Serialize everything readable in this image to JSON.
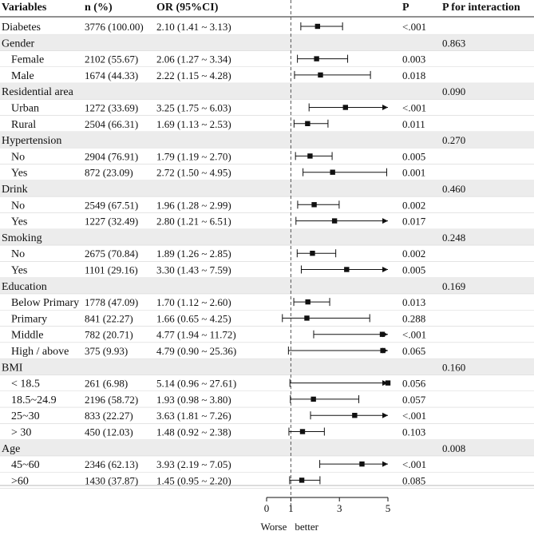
{
  "chart_data": {
    "type": "forest",
    "headers": {
      "variables": "Variables",
      "n": "n (%)",
      "or": "OR (95%CI)",
      "p": "P",
      "p_interaction": "P for interaction"
    },
    "reference_value": 1,
    "x_axis": {
      "range": [
        0,
        5
      ],
      "ticks": [
        0,
        1,
        3,
        5
      ],
      "tick_labels": [
        "0",
        "1",
        "3",
        "5"
      ],
      "left_label": "Worse",
      "right_label": "better"
    },
    "rows": [
      {
        "label": "Diabetes",
        "indent": false,
        "group": false,
        "n": "3776 (100.00)",
        "or_text": "2.10 (1.41 ~ 3.13)",
        "or": 2.1,
        "lo": 1.41,
        "hi": 3.13,
        "arrow": false,
        "p": "<.001",
        "p_int": ""
      },
      {
        "label": "Gender",
        "indent": false,
        "group": true,
        "n": "",
        "or_text": "",
        "p": "",
        "p_int": "0.863"
      },
      {
        "label": "Female",
        "indent": true,
        "group": false,
        "n": "2102 (55.67)",
        "or_text": "2.06 (1.27 ~ 3.34)",
        "or": 2.06,
        "lo": 1.27,
        "hi": 3.34,
        "arrow": false,
        "p": "0.003",
        "p_int": ""
      },
      {
        "label": "Male",
        "indent": true,
        "group": false,
        "n": "1674 (44.33)",
        "or_text": "2.22 (1.15 ~ 4.28)",
        "or": 2.22,
        "lo": 1.15,
        "hi": 4.28,
        "arrow": false,
        "p": "0.018",
        "p_int": ""
      },
      {
        "label": "Residential area",
        "indent": false,
        "group": true,
        "n": "",
        "or_text": "",
        "p": "",
        "p_int": "0.090"
      },
      {
        "label": "Urban",
        "indent": true,
        "group": false,
        "n": "1272 (33.69)",
        "or_text": "3.25 (1.75 ~ 6.03)",
        "or": 3.25,
        "lo": 1.75,
        "hi": 6.03,
        "arrow": true,
        "p": "<.001",
        "p_int": ""
      },
      {
        "label": "Rural",
        "indent": true,
        "group": false,
        "n": "2504 (66.31)",
        "or_text": "1.69 (1.13 ~ 2.53)",
        "or": 1.69,
        "lo": 1.13,
        "hi": 2.53,
        "arrow": false,
        "p": "0.011",
        "p_int": ""
      },
      {
        "label": "Hypertension",
        "indent": false,
        "group": true,
        "n": "",
        "or_text": "",
        "p": "",
        "p_int": "0.270"
      },
      {
        "label": "No",
        "indent": true,
        "group": false,
        "n": "2904 (76.91)",
        "or_text": "1.79 (1.19 ~ 2.70)",
        "or": 1.79,
        "lo": 1.19,
        "hi": 2.7,
        "arrow": false,
        "p": "0.005",
        "p_int": ""
      },
      {
        "label": "Yes",
        "indent": true,
        "group": false,
        "n": "872 (23.09)",
        "or_text": "2.72 (1.50 ~ 4.95)",
        "or": 2.72,
        "lo": 1.5,
        "hi": 4.95,
        "arrow": false,
        "p": "0.001",
        "p_int": ""
      },
      {
        "label": "Drink",
        "indent": false,
        "group": true,
        "n": "",
        "or_text": "",
        "p": "",
        "p_int": "0.460"
      },
      {
        "label": "No",
        "indent": true,
        "group": false,
        "n": "2549 (67.51)",
        "or_text": "1.96 (1.28 ~ 2.99)",
        "or": 1.96,
        "lo": 1.28,
        "hi": 2.99,
        "arrow": false,
        "p": "0.002",
        "p_int": ""
      },
      {
        "label": "Yes",
        "indent": true,
        "group": false,
        "n": "1227 (32.49)",
        "or_text": "2.80 (1.21 ~ 6.51)",
        "or": 2.8,
        "lo": 1.21,
        "hi": 6.51,
        "arrow": true,
        "p": "0.017",
        "p_int": ""
      },
      {
        "label": "Smoking",
        "indent": false,
        "group": true,
        "n": "",
        "or_text": "",
        "p": "",
        "p_int": "0.248"
      },
      {
        "label": "No",
        "indent": true,
        "group": false,
        "n": "2675 (70.84)",
        "or_text": "1.89 (1.26 ~ 2.85)",
        "or": 1.89,
        "lo": 1.26,
        "hi": 2.85,
        "arrow": false,
        "p": "0.002",
        "p_int": ""
      },
      {
        "label": "Yes",
        "indent": true,
        "group": false,
        "n": "1101 (29.16)",
        "or_text": "3.30 (1.43 ~ 7.59)",
        "or": 3.3,
        "lo": 1.43,
        "hi": 7.59,
        "arrow": true,
        "p": "0.005",
        "p_int": ""
      },
      {
        "label": "Education",
        "indent": false,
        "group": true,
        "n": "",
        "or_text": "",
        "p": "",
        "p_int": "0.169"
      },
      {
        "label": "Below Primary",
        "indent": true,
        "group": false,
        "n": "1778 (47.09)",
        "or_text": "1.70 (1.12 ~ 2.60)",
        "or": 1.7,
        "lo": 1.12,
        "hi": 2.6,
        "arrow": false,
        "p": "0.013",
        "p_int": ""
      },
      {
        "label": "Primary",
        "indent": true,
        "group": false,
        "n": "841 (22.27)",
        "or_text": "1.66 (0.65 ~ 4.25)",
        "or": 1.66,
        "lo": 0.65,
        "hi": 4.25,
        "arrow": false,
        "p": "0.288",
        "p_int": ""
      },
      {
        "label": "Middle",
        "indent": true,
        "group": false,
        "n": "782 (20.71)",
        "or_text": "4.77 (1.94 ~ 11.72)",
        "or": 4.77,
        "lo": 1.94,
        "hi": 11.72,
        "arrow": true,
        "p": "<.001",
        "p_int": ""
      },
      {
        "label": "High / above",
        "indent": true,
        "group": false,
        "n": "375 (9.93)",
        "or_text": "4.79 (0.90 ~ 25.36)",
        "or": 4.79,
        "lo": 0.9,
        "hi": 25.36,
        "arrow": true,
        "p": "0.065",
        "p_int": ""
      },
      {
        "label": "BMI",
        "indent": false,
        "group": true,
        "n": "",
        "or_text": "",
        "p": "",
        "p_int": "0.160"
      },
      {
        "label": "< 18.5",
        "indent": true,
        "group": false,
        "n": "261 (6.98)",
        "or_text": "5.14 (0.96 ~ 27.61)",
        "or": 5.14,
        "lo": 0.96,
        "hi": 27.61,
        "arrow": true,
        "p": "0.056",
        "p_int": ""
      },
      {
        "label": "18.5~24.9",
        "indent": true,
        "group": false,
        "n": "2196 (58.72)",
        "or_text": "1.93 (0.98 ~ 3.80)",
        "or": 1.93,
        "lo": 0.98,
        "hi": 3.8,
        "arrow": false,
        "p": "0.057",
        "p_int": ""
      },
      {
        "label": "25~30",
        "indent": true,
        "group": false,
        "n": "833 (22.27)",
        "or_text": "3.63 (1.81 ~ 7.26)",
        "or": 3.63,
        "lo": 1.81,
        "hi": 7.26,
        "arrow": true,
        "p": "<.001",
        "p_int": ""
      },
      {
        "label": "> 30",
        "indent": true,
        "group": false,
        "n": "450 (12.03)",
        "or_text": "1.48 (0.92 ~ 2.38)",
        "or": 1.48,
        "lo": 0.92,
        "hi": 2.38,
        "arrow": false,
        "p": "0.103",
        "p_int": ""
      },
      {
        "label": "Age",
        "indent": false,
        "group": true,
        "n": "",
        "or_text": "",
        "p": "",
        "p_int": "0.008"
      },
      {
        "label": "45~60",
        "indent": true,
        "group": false,
        "n": "2346 (62.13)",
        "or_text": "3.93 (2.19 ~ 7.05)",
        "or": 3.93,
        "lo": 2.19,
        "hi": 7.05,
        "arrow": true,
        "p": "<.001",
        "p_int": ""
      },
      {
        "label": ">60",
        "indent": true,
        "group": false,
        "n": "1430 (37.87)",
        "or_text": "1.45 (0.95 ~ 2.20)",
        "or": 1.45,
        "lo": 0.95,
        "hi": 2.2,
        "arrow": false,
        "p": "0.085",
        "p_int": ""
      }
    ]
  }
}
